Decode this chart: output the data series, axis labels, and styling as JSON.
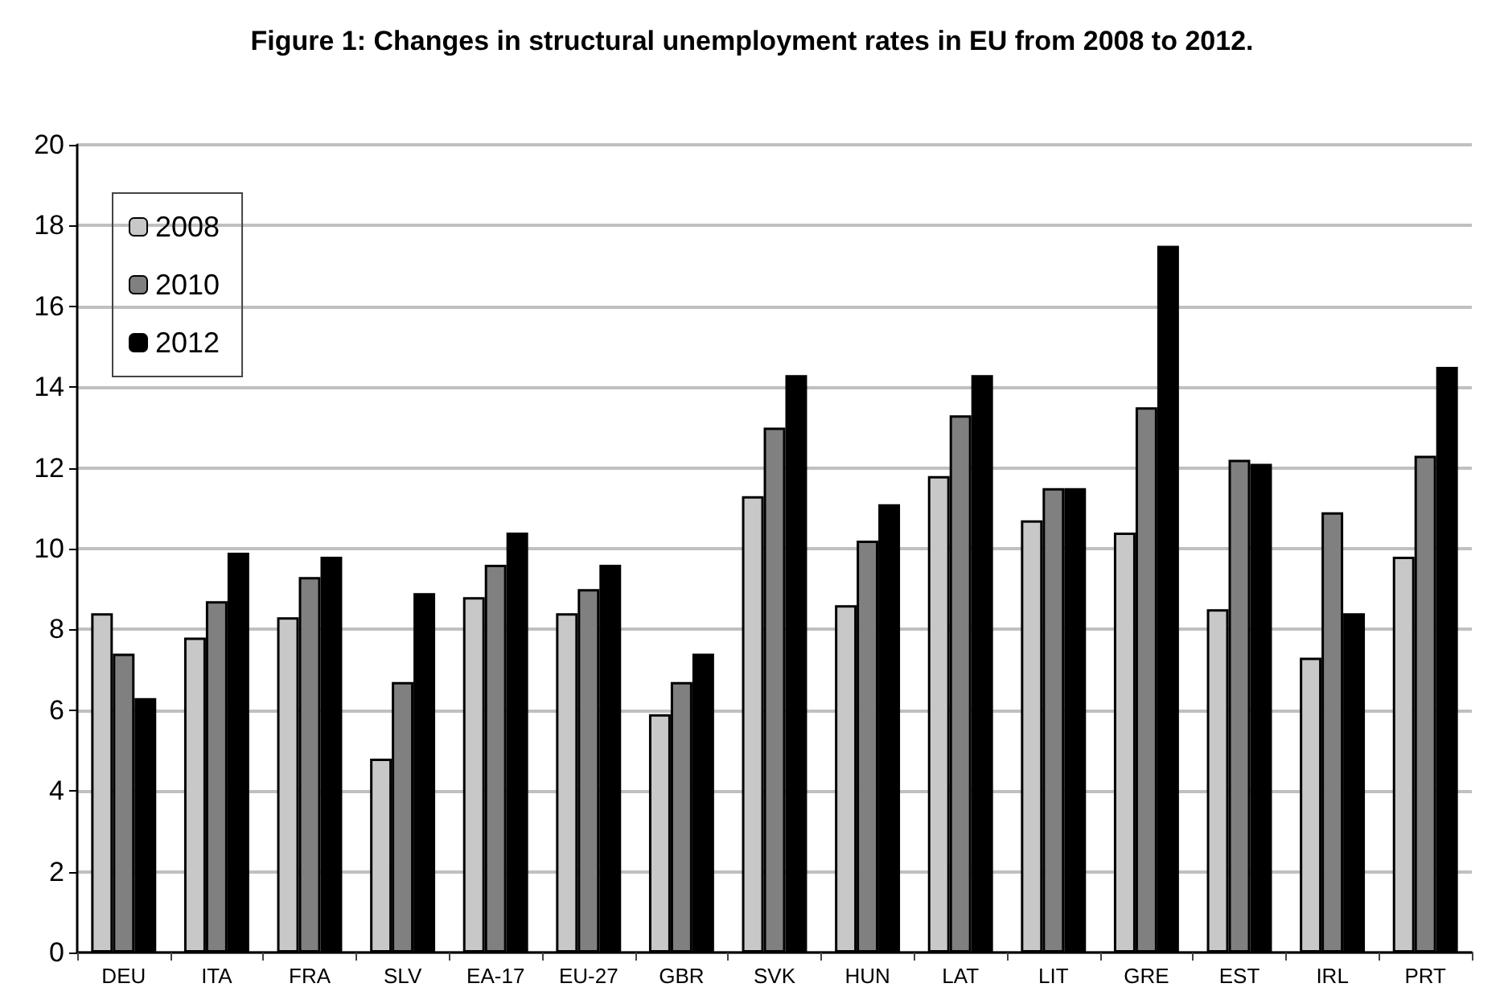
{
  "chart_data": {
    "type": "bar",
    "title": "Figure 1: Changes in structural unemployment rates in EU from 2008 to 2012.",
    "categories": [
      "DEU",
      "ITA",
      "FRA",
      "SLV",
      "EA-17",
      "EU-27",
      "GBR",
      "SVK",
      "HUN",
      "LAT",
      "LIT",
      "GRE",
      "EST",
      "IRL",
      "PRT"
    ],
    "series": [
      {
        "name": "2008",
        "color": "#c8c8c8",
        "values": [
          8.4,
          7.8,
          8.3,
          4.8,
          8.8,
          8.4,
          5.9,
          11.3,
          8.6,
          11.8,
          10.7,
          10.4,
          8.5,
          7.3,
          9.8
        ]
      },
      {
        "name": "2010",
        "color": "#808080",
        "values": [
          7.4,
          8.7,
          9.3,
          6.7,
          9.6,
          9.0,
          6.7,
          13.0,
          10.2,
          13.3,
          11.5,
          13.5,
          12.2,
          10.9,
          12.3
        ]
      },
      {
        "name": "2012",
        "color": "#000000",
        "values": [
          6.3,
          9.9,
          9.8,
          8.9,
          10.4,
          9.6,
          7.4,
          14.3,
          11.1,
          14.3,
          11.5,
          17.5,
          12.1,
          8.4,
          14.5
        ]
      }
    ],
    "ylim": [
      0,
      20
    ],
    "yticks": [
      0,
      2,
      4,
      6,
      8,
      10,
      12,
      14,
      16,
      18,
      20
    ],
    "grid": "y",
    "legend": "top left"
  }
}
